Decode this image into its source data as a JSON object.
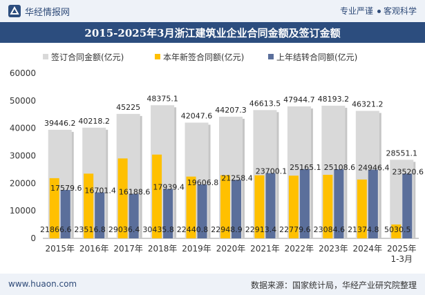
{
  "header": {
    "brand": "华经情报网",
    "tag1": "专业严谨",
    "tag2": "客观科学",
    "logo_icon": "huajing-logo-icon"
  },
  "footer": {
    "website": "www.huaon.com",
    "source": "数据来源：国家统计局，华经产业研究院整理"
  },
  "colors": {
    "total": "#d9d9d9",
    "new": "#ffc000",
    "carryover": "#5b6f9b",
    "title_bg": "#2c4d7e"
  },
  "chart_data": {
    "type": "bar",
    "title": "2015-2025年3月浙江建筑业企业合同金额及签订金额",
    "categories": [
      "2015年",
      "2016年",
      "2017年",
      "2018年",
      "2019年",
      "2020年",
      "2021年",
      "2022年",
      "2023年",
      "2024年",
      "2025年\n1-3月"
    ],
    "series": [
      {
        "name": "签订合同金额(亿元)",
        "values": [
          39446.2,
          40218.2,
          45225,
          48375.1,
          42047.6,
          44207.3,
          46613.5,
          47944.7,
          48193.2,
          46321.2,
          28551.1
        ]
      },
      {
        "name": "本年新签合同额(亿元)",
        "values": [
          21866.6,
          23516.8,
          29036.4,
          30435.8,
          22440.8,
          22948.9,
          22913.4,
          22779.6,
          23084.6,
          21374.8,
          5030.5
        ]
      },
      {
        "name": "上年结转合同额(亿元)",
        "values": [
          17579.6,
          16701.4,
          16188.6,
          17939.4,
          19606.8,
          21258.4,
          23700.1,
          25165.1,
          25108.6,
          24946.4,
          23520.6
        ]
      }
    ],
    "ylim": [
      0,
      60000
    ],
    "yticks": [
      0,
      10000,
      20000,
      30000,
      40000,
      50000,
      60000
    ],
    "grid": false,
    "legend": "top"
  }
}
